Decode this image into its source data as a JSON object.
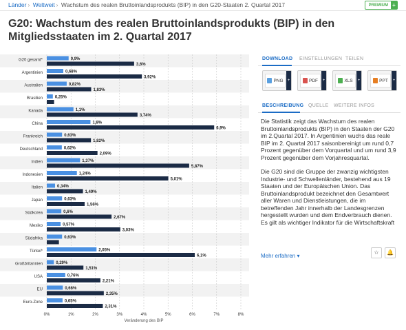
{
  "breadcrumb": {
    "items": [
      "Länder",
      "Weltweit",
      "Wachstum des realen Bruttoinlandsprodukts (BIP) in den G20-Staaten 2. Quartal 2017"
    ],
    "separator": "›"
  },
  "premium": {
    "label": "PREMIUM",
    "plus": "+"
  },
  "page_title": "G20: Wachstum des realen Bruttoinlandsprodukts (BIP) in den Mitgliedsstaaten im 2. Quartal 2017",
  "colors": {
    "bar_light": "#4a90e2",
    "bar_dark": "#1b2b45",
    "link": "#1b6cc5",
    "stripe": "#f2f2f2"
  },
  "chart_data": {
    "type": "bar",
    "orientation": "horizontal",
    "categories": [
      "G20 gesamt*",
      "Argentinien",
      "Australien",
      "Brasilien",
      "Kanada",
      "China",
      "Frankreich",
      "Deutschland",
      "Indien",
      "Indonesien",
      "Italien",
      "Japan",
      "Südkorea",
      "Mexiko",
      "Südafrika",
      "Türkei*",
      "Großbritannien",
      "USA",
      "EU",
      "Euro-Zone"
    ],
    "series": [
      {
        "color": "#4a90e2",
        "values": [
          0.9,
          0.68,
          0.82,
          0.25,
          1.1,
          1.8,
          0.63,
          0.62,
          1.37,
          1.24,
          0.34,
          0.63,
          0.6,
          0.57,
          0.63,
          2.05,
          0.29,
          0.76,
          0.66,
          0.65
        ],
        "labels": [
          "0,9%",
          "0,68%",
          "0,82%",
          "0,25%",
          "1,1%",
          "1,8%",
          "0,63%",
          "0,62%",
          "1,37%",
          "1,24%",
          "0,34%",
          "0,63%",
          "0,6%",
          "0,57%",
          "0,63%",
          "2,05%",
          "0,29%",
          "0,76%",
          "0,66%",
          "0,65%"
        ]
      },
      {
        "color": "#1b2b45",
        "values": [
          3.6,
          3.92,
          1.83,
          0.3,
          3.74,
          6.9,
          1.82,
          2.09,
          5.87,
          5.01,
          1.49,
          1.56,
          2.67,
          3.03,
          0.5,
          6.1,
          1.51,
          2.21,
          2.35,
          2.31
        ],
        "labels": [
          "3,6%",
          "3,92%",
          "1,83%",
          "",
          "3,74%",
          "6,9%",
          "1,82%",
          "2,09%",
          "5,87%",
          "5,01%",
          "1,49%",
          "1,56%",
          "2,67%",
          "3,03%",
          "",
          "6,1%",
          "1,51%",
          "2,21%",
          "2,35%",
          "2,31%"
        ]
      }
    ],
    "xlim": [
      0,
      8
    ],
    "xticks": [
      "0%",
      "1%",
      "2%",
      "3%",
      "4%",
      "5%",
      "6%",
      "7%",
      "8%"
    ],
    "xlabel": "Veränderung des BIP",
    "grid": true,
    "legend": "none"
  },
  "sidebar": {
    "tabs": [
      "DOWNLOAD",
      "EINSTELLUNGEN",
      "TEILEN"
    ],
    "downloads": [
      {
        "label": "PNG",
        "icon": "png-file-icon",
        "color": "#5aa0e0"
      },
      {
        "label": "PDF",
        "icon": "pdf-file-icon",
        "color": "#d9534f"
      },
      {
        "label": "XLS",
        "icon": "xls-file-icon",
        "color": "#4caf50"
      },
      {
        "label": "PPT",
        "icon": "ppt-file-icon",
        "color": "#e67e22"
      }
    ],
    "info_tabs": [
      "BESCHREIBUNG",
      "QUELLE",
      "WEITERE INFOS"
    ],
    "description": [
      "Die Statistik zeigt das Wachstum des realen Bruttoinlandsprodukts (BIP) in den Staaten der G20 im 2.Quartal 2017. In Argentinien wuchs das reale BIP im 2. Quartal 2017 saisonbereinigt um rund 0,7 Prozent gegenüber dem Vorquartal und um rund 3,9 Prozent gegenüber dem Vorjahresquartal.",
      "Die G20 sind die Gruppe der zwanzig wichtigsten Industrie- und Schwellenländer, bestehend aus 19 Staaten und der Europäischen Union. Das Bruttoinlandsprodukt bezeichnet den Gesamtwert aller Waren und Dienstleistungen, die im betreffenden Jahr innerhalb der Landesgrenzen hergestellt wurden und dem Endverbrauch dienen. Es gilt als wichtiger Indikator für die Wirtschaftskraft"
    ],
    "more_link": "Mehr erfahren",
    "more_chevron": "▾",
    "star_icon": "☆",
    "bell_icon": "🔔"
  }
}
